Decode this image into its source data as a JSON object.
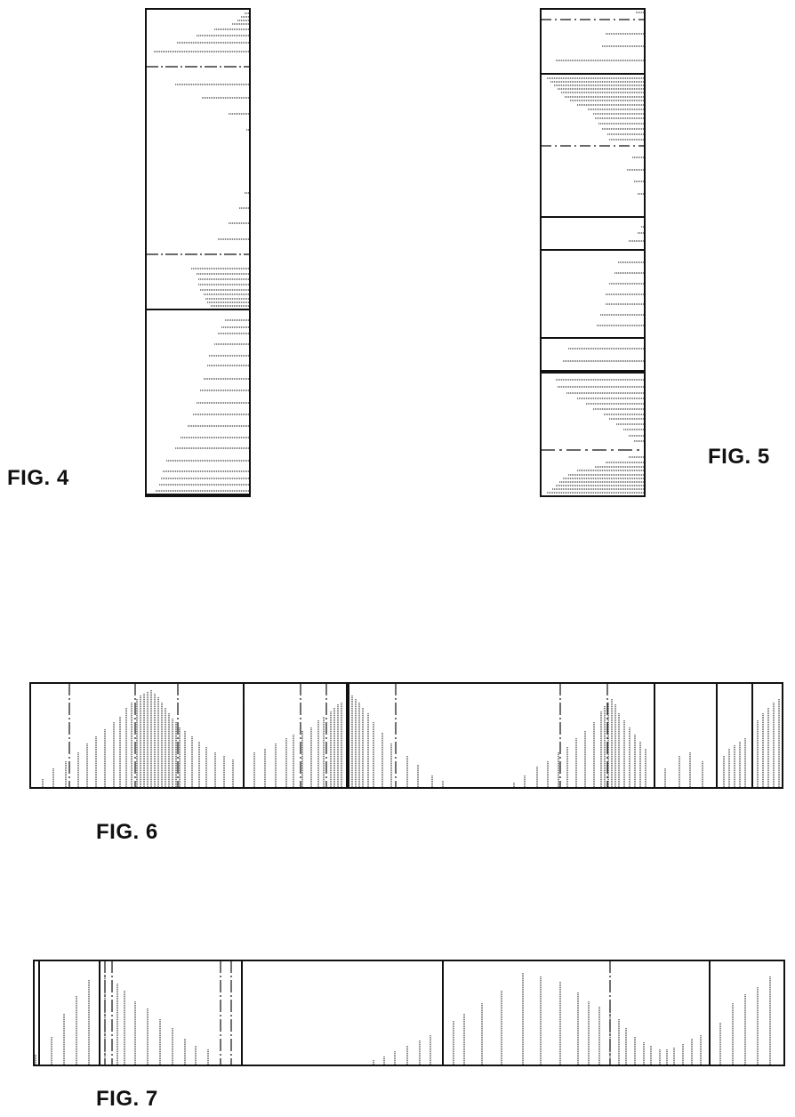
{
  "figures": {
    "fig4": {
      "label": "FIG. 4"
    },
    "fig5": {
      "label": "FIG. 5"
    },
    "fig6": {
      "label": "FIG. 6"
    },
    "fig7": {
      "label": "FIG. 7"
    }
  },
  "colors": {
    "ink": "#111111",
    "background": "#ffffff"
  }
}
